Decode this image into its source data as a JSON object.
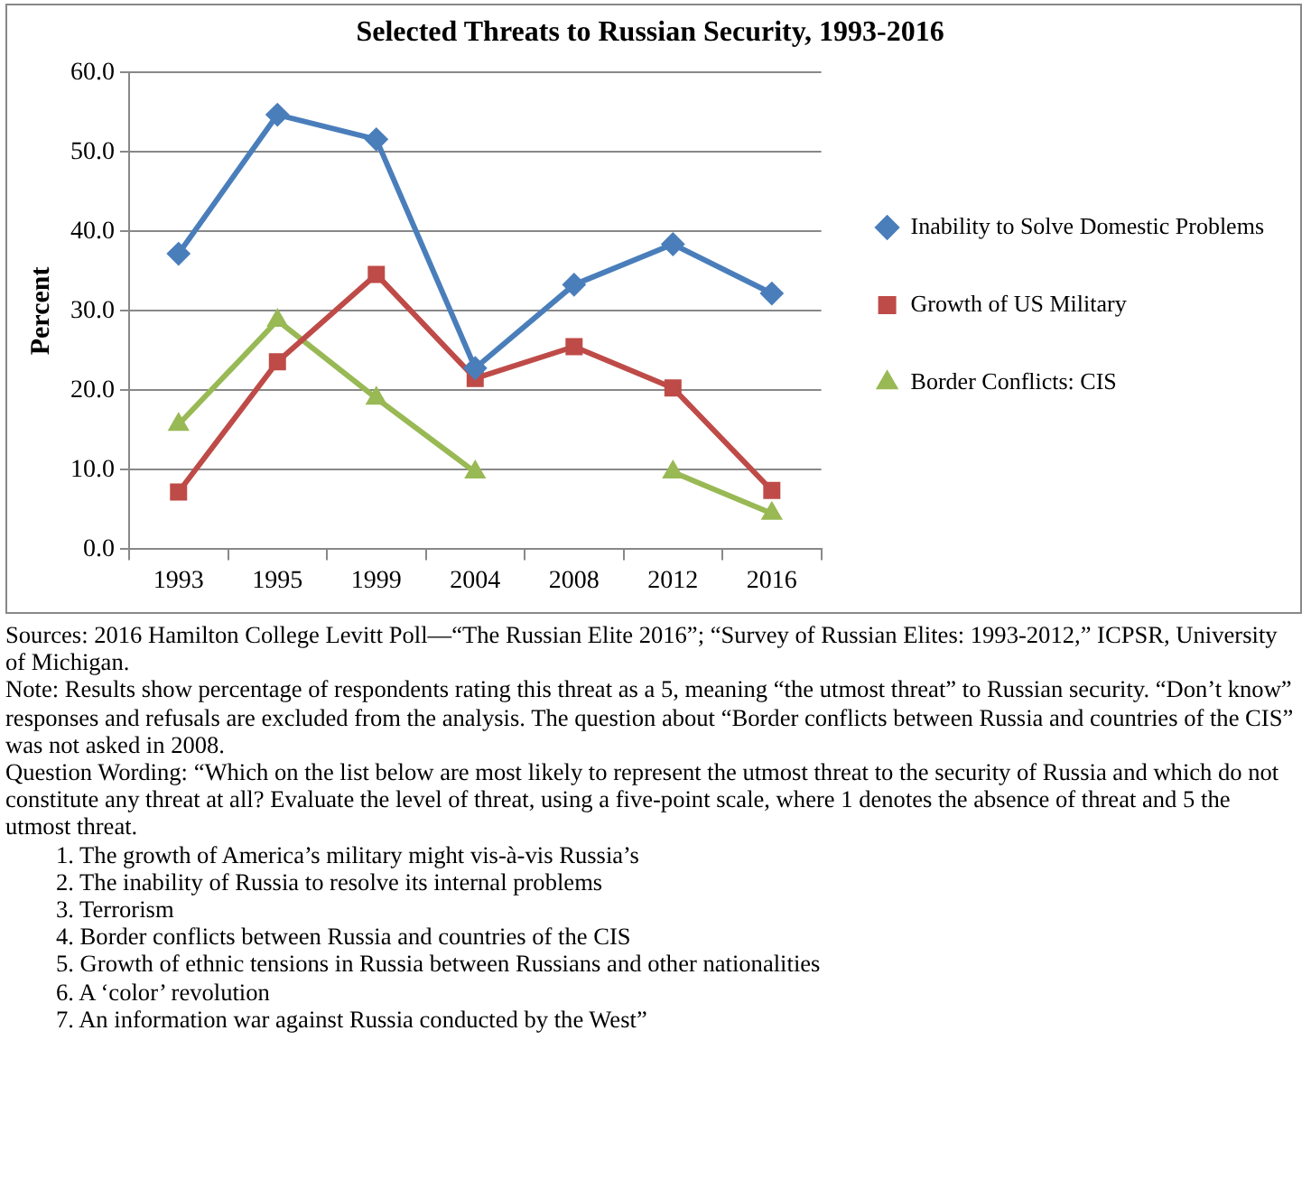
{
  "chart_data": {
    "type": "line",
    "title": "Selected Threats to Russian Security, 1993-2016",
    "ylabel": "Percent",
    "categories": [
      "1993",
      "1995",
      "1999",
      "2004",
      "2008",
      "2012",
      "2016"
    ],
    "series": [
      {
        "name": "Inability to Solve Domestic Problems",
        "color": "#4a7ebb",
        "marker": "diamond",
        "values": [
          37.2,
          54.7,
          51.6,
          22.8,
          33.3,
          38.4,
          32.2
        ]
      },
      {
        "name": "Growth of US Military",
        "color": "#be4b48",
        "marker": "square",
        "values": [
          7.2,
          23.6,
          34.6,
          21.5,
          25.5,
          20.3,
          7.4
        ]
      },
      {
        "name": "Border Conflicts: CIS",
        "color": "#98b954",
        "marker": "triangle",
        "values": [
          15.7,
          28.8,
          19.0,
          9.7,
          null,
          9.7,
          4.5
        ]
      }
    ],
    "ylim": [
      0,
      60
    ],
    "yticks": [
      {
        "value": 0,
        "label": "0.0"
      },
      {
        "value": 10,
        "label": "10.0"
      },
      {
        "value": 20,
        "label": "20.0"
      },
      {
        "value": 30,
        "label": "30.0"
      },
      {
        "value": 40,
        "label": "40.0"
      },
      {
        "value": 50,
        "label": "50.0"
      },
      {
        "value": 60,
        "label": "60.0"
      }
    ],
    "grid": "y",
    "legend": "right",
    "annotations": [
      "Sources: 2016 Hamilton College Levitt Poll—“The Russian Elite 2016”; “Survey of Russian Elites: 1993-2012,” ICPSR, University of Michigan.",
      "Note: Results show percentage of respondents rating this threat as a 5, meaning “the utmost threat” to Russian security.  “Don’t know” responses and refusals are excluded from the analysis. The question about “Border conflicts between Russia and countries of the CIS” was not asked in 2008.",
      "Question Wording: “Which on the list below are most likely to represent the utmost threat to the security of Russia and which do not constitute any threat at all? Evaluate the level of threat, using a five-point scale, where 1 denotes the absence of threat and 5 the utmost threat.",
      "1. The growth of America’s military might vis-à-vis Russia’s",
      "2. The inability of Russia to resolve its internal problems",
      "3. Terrorism",
      "4. Border conflicts between Russia and countries of the CIS",
      "5. Growth of ethnic tensions in Russia between Russians and other nationalities",
      "6. A ‘color’ revolution",
      "7. An information war against Russia conducted by the West”"
    ]
  }
}
